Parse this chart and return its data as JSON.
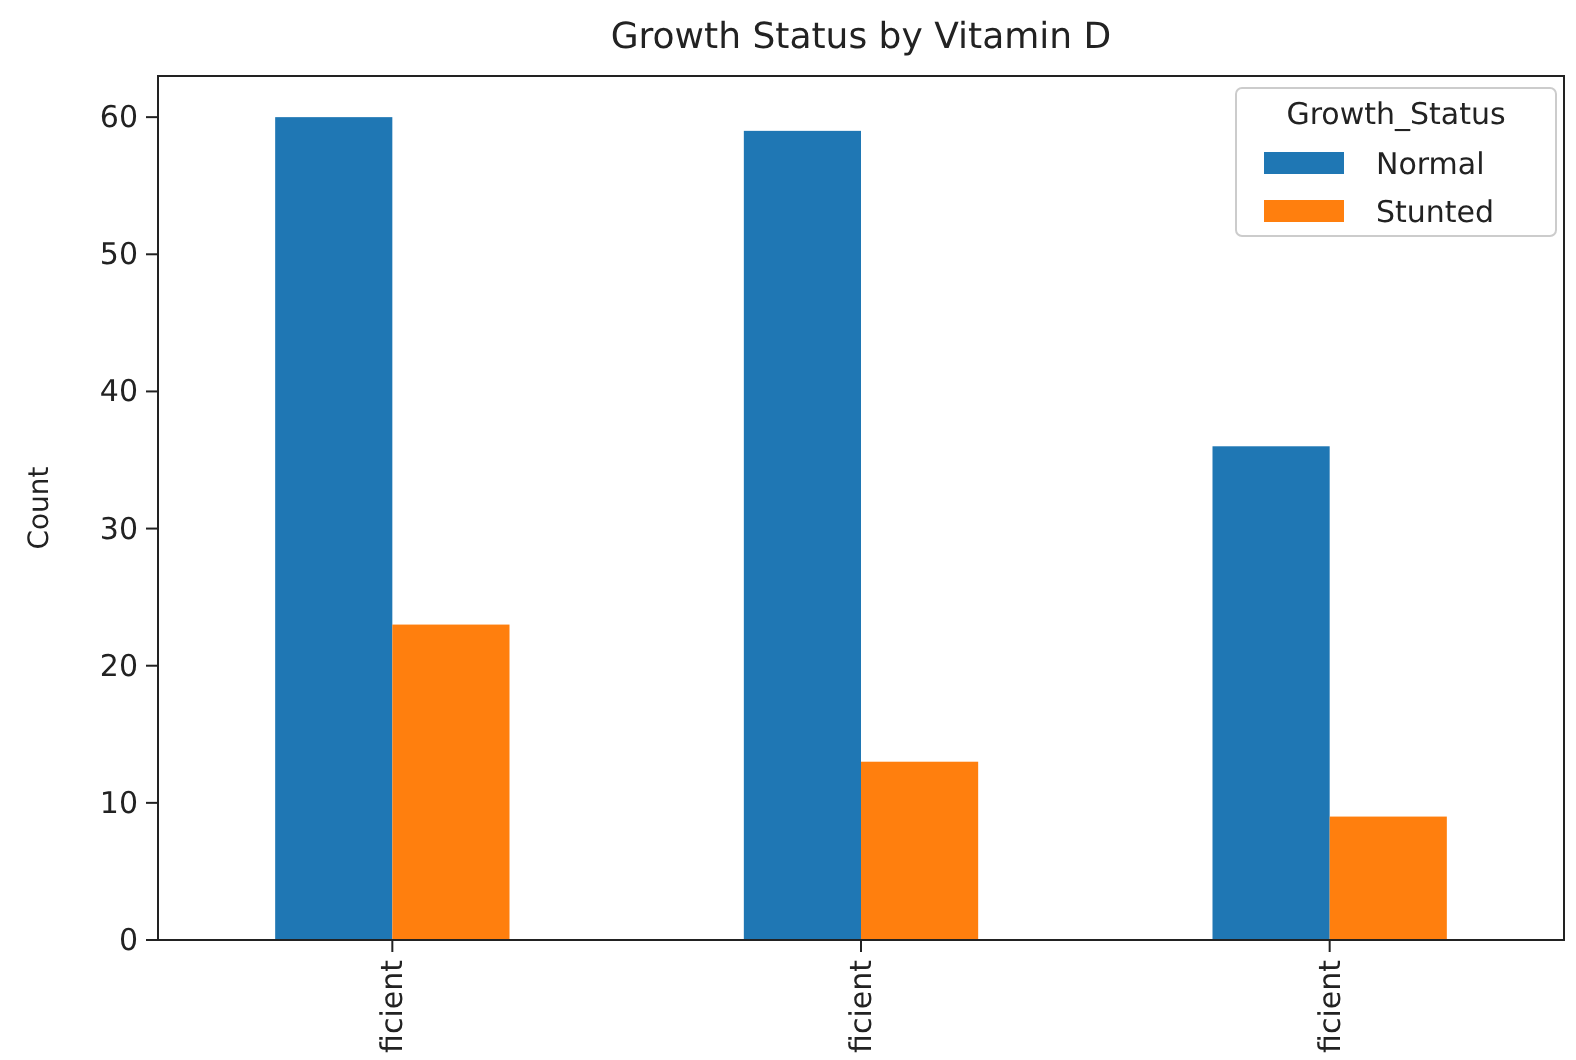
{
  "chart_data": {
    "type": "bar",
    "title": "Growth Status by Vitamin D",
    "ylabel": "Count",
    "legend_title": "Growth_Status",
    "categories": [
      "ficient",
      "ficient",
      "ficient"
    ],
    "series": [
      {
        "name": "Normal",
        "color": "#1f77b4",
        "values": [
          60,
          59,
          36
        ]
      },
      {
        "name": "Stunted",
        "color": "#ff7f0e",
        "values": [
          23,
          13,
          9
        ]
      }
    ],
    "ylim": [
      0,
      63
    ],
    "yticks": [
      0,
      10,
      20,
      30,
      40,
      50,
      60
    ],
    "legend": "top right",
    "grid": false
  }
}
